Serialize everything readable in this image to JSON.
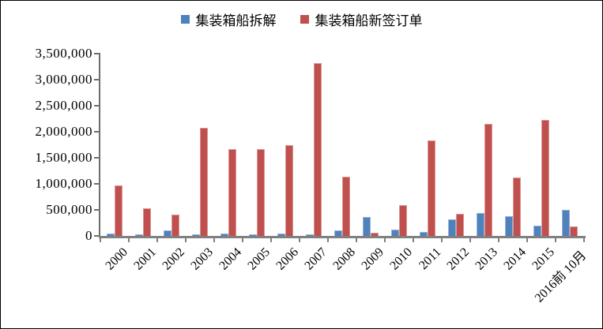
{
  "chart_data": {
    "type": "bar",
    "title": "",
    "xlabel": "",
    "ylabel": "",
    "categories": [
      "2000",
      "2001",
      "2002",
      "2003",
      "2004",
      "2005",
      "2006",
      "2007",
      "2008",
      "2009",
      "2010",
      "2011",
      "2012",
      "2013",
      "2014",
      "2015",
      "2016前 10月"
    ],
    "series": [
      {
        "name": "集装箱船拆解",
        "color": "#4F81BD",
        "border_color": "#95B3D7",
        "values": [
          40000,
          35000,
          100000,
          35000,
          40000,
          30000,
          50000,
          30000,
          110000,
          365000,
          120000,
          80000,
          320000,
          440000,
          375000,
          200000,
          500000
        ]
      },
      {
        "name": "集装箱船新签订单",
        "color": "#C0504D",
        "border_color": "#D99694",
        "values": [
          965000,
          525000,
          410000,
          2080000,
          1670000,
          1665000,
          1745000,
          3320000,
          1135000,
          55000,
          590000,
          1840000,
          425000,
          2155000,
          1120000,
          2230000,
          175000
        ]
      }
    ],
    "ylim": [
      0,
      3500000
    ],
    "y_tick_step": 500000,
    "y_tick_labels": [
      "0",
      "500,000",
      "1,000,000",
      "1,500,000",
      "2,000,000",
      "2,500,000",
      "3,000,000",
      "3,500,000"
    ],
    "grid": false,
    "legend_position": "top-center",
    "x_tick_label_rotation": -45,
    "axis_color": "#808080"
  }
}
